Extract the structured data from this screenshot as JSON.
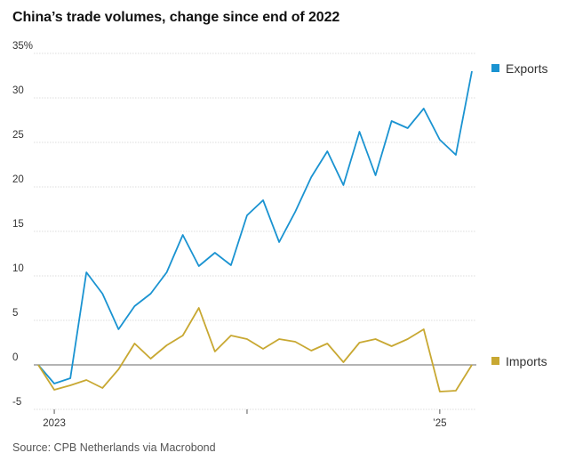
{
  "title": "China’s trade volumes, change since end of 2022",
  "source": "Source: CPB Netherlands via Macrobond",
  "chart_data": {
    "type": "line",
    "title": "China’s trade volumes, change since end of 2022",
    "xlabel": "",
    "ylabel": "",
    "ylim": [
      -5,
      35
    ],
    "yticks": [
      35,
      30,
      25,
      20,
      15,
      10,
      5,
      0,
      -5
    ],
    "ytick_labels": [
      "35%",
      "30",
      "25",
      "20",
      "15",
      "10",
      "5",
      "0",
      "-5"
    ],
    "x_start": "2022-12",
    "x_end": "2025-03",
    "x_ticks": [
      {
        "x": "2023-01",
        "label": "2023"
      },
      {
        "x": "2024-01",
        "label": ""
      },
      {
        "x": "2025-01",
        "label": "’25"
      }
    ],
    "grid": true,
    "legend": "right, labels at line ends",
    "x": [
      "2022-12",
      "2023-01",
      "2023-02",
      "2023-03",
      "2023-04",
      "2023-05",
      "2023-06",
      "2023-07",
      "2023-08",
      "2023-09",
      "2023-10",
      "2023-11",
      "2023-12",
      "2024-01",
      "2024-02",
      "2024-03",
      "2024-04",
      "2024-05",
      "2024-06",
      "2024-07",
      "2024-08",
      "2024-09",
      "2024-10",
      "2024-11",
      "2024-12",
      "2025-01",
      "2025-02",
      "2025-03"
    ],
    "series": [
      {
        "name": "Exports",
        "color": "#1a93d1",
        "values": [
          0,
          -2.1,
          -1.5,
          10.4,
          8.0,
          4.0,
          6.6,
          8.0,
          10.4,
          14.6,
          11.1,
          12.6,
          11.2,
          16.8,
          18.5,
          13.8,
          17.2,
          21.1,
          24.0,
          20.2,
          26.2,
          21.3,
          27.4,
          26.6,
          28.8,
          25.3,
          23.6,
          33.0
        ]
      },
      {
        "name": "Imports",
        "color": "#c8a832",
        "values": [
          0,
          -2.8,
          -2.3,
          -1.7,
          -2.6,
          -0.5,
          2.4,
          0.7,
          2.2,
          3.3,
          6.4,
          1.5,
          3.3,
          2.9,
          1.8,
          2.9,
          2.6,
          1.6,
          2.4,
          0.3,
          2.5,
          2.9,
          2.1,
          2.9,
          4.0,
          -3.0,
          -2.9,
          0
        ]
      }
    ]
  }
}
